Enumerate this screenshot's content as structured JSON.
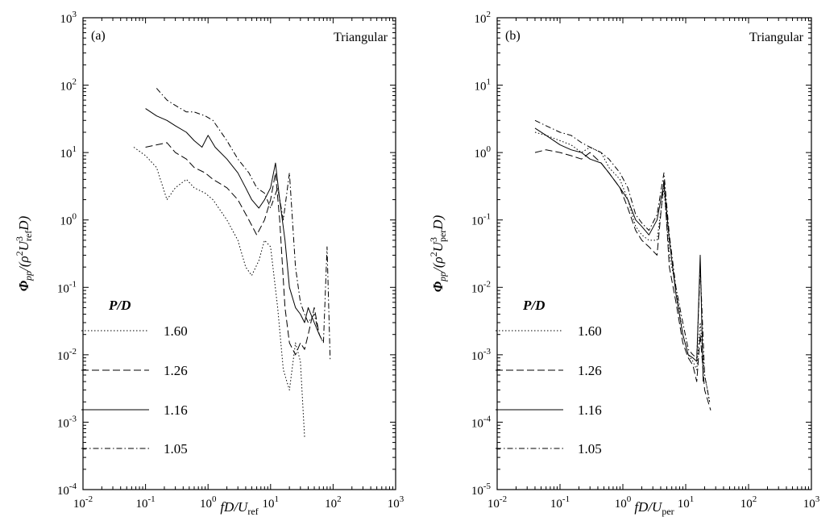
{
  "chart_data": [
    {
      "type": "line",
      "panel_label": "(a)",
      "title": "Triangular",
      "xlabel": "fD/U",
      "xlabel_sub": "ref",
      "ylabel": "Φ",
      "ylabel_sub": "pp",
      "ylabel_rest": "/(ρ",
      "ylabel_sup": "2",
      "ylabel_U": "U",
      "ylabel_U_sup": "3",
      "ylabel_U_sub": "ref",
      "ylabel_end": "D)",
      "x_scale": "log",
      "y_scale": "log",
      "xlim": [
        0.01,
        1000
      ],
      "ylim": [
        0.0001,
        1000
      ],
      "x_ticks": [
        {
          "base": "10",
          "exp": "-2"
        },
        {
          "base": "10",
          "exp": "-1"
        },
        {
          "base": "10",
          "exp": "0"
        },
        {
          "base": "10",
          "exp": "1"
        },
        {
          "base": "10",
          "exp": "2"
        },
        {
          "base": "10",
          "exp": "3"
        }
      ],
      "y_ticks": [
        {
          "base": "10",
          "exp": "-4"
        },
        {
          "base": "10",
          "exp": "-3"
        },
        {
          "base": "10",
          "exp": "-2"
        },
        {
          "base": "10",
          "exp": "-1"
        },
        {
          "base": "10",
          "exp": "0"
        },
        {
          "base": "10",
          "exp": "1"
        },
        {
          "base": "10",
          "exp": "2"
        },
        {
          "base": "10",
          "exp": "3"
        }
      ],
      "legend_title": "P/D",
      "legend_position": "lower-left",
      "series": [
        {
          "name": "1.60",
          "dash": "dotted",
          "x": [
            0.065,
            0.1,
            0.15,
            0.22,
            0.3,
            0.45,
            0.6,
            0.9,
            1.2,
            2.0,
            3.0,
            4.0,
            5.0,
            6.5,
            8.0,
            10,
            13,
            16,
            20,
            25,
            30,
            35
          ],
          "y": [
            12,
            9,
            6,
            2.0,
            3.0,
            4.0,
            3.0,
            2.5,
            2.0,
            1.0,
            0.5,
            0.2,
            0.15,
            0.25,
            0.5,
            0.4,
            0.05,
            0.006,
            0.003,
            0.015,
            0.008,
            0.0006
          ]
        },
        {
          "name": "1.26",
          "dash": "dashed",
          "x": [
            0.1,
            0.15,
            0.22,
            0.3,
            0.45,
            0.6,
            0.9,
            1.2,
            2.0,
            3.0,
            4.5,
            6.0,
            8.0,
            10,
            12,
            14,
            17,
            20,
            25,
            30,
            35,
            40,
            50,
            60,
            70
          ],
          "y": [
            12,
            13,
            14,
            10,
            8,
            6,
            5,
            4,
            3.0,
            2.0,
            1.0,
            0.6,
            1.0,
            2.0,
            5.0,
            1.0,
            0.05,
            0.015,
            0.01,
            0.015,
            0.012,
            0.02,
            0.05,
            0.02,
            0.015
          ]
        },
        {
          "name": "1.16",
          "dash": "solid",
          "x": [
            0.1,
            0.15,
            0.22,
            0.3,
            0.45,
            0.6,
            0.8,
            1.0,
            1.3,
            2.0,
            3.0,
            4.0,
            5.0,
            6.5,
            8.0,
            10,
            12,
            14,
            17,
            20,
            25,
            30,
            35,
            40,
            50,
            60
          ],
          "y": [
            45,
            35,
            30,
            25,
            20,
            15,
            12,
            18,
            12,
            8,
            5,
            3,
            2.0,
            1.5,
            2.0,
            3.0,
            7,
            2.0,
            0.5,
            0.1,
            0.05,
            0.04,
            0.03,
            0.05,
            0.03,
            0.02
          ]
        },
        {
          "name": "1.05",
          "dash": "dashdot",
          "x": [
            0.15,
            0.22,
            0.3,
            0.45,
            0.6,
            0.9,
            1.2,
            2.0,
            3.0,
            4.5,
            6.0,
            8.0,
            10,
            13,
            16,
            20,
            25,
            30,
            35,
            40,
            50,
            60,
            70,
            80,
            90
          ],
          "y": [
            90,
            60,
            50,
            40,
            40,
            35,
            30,
            15,
            8,
            5,
            3.0,
            2.5,
            1.5,
            3.0,
            1.0,
            5.0,
            0.2,
            0.06,
            0.04,
            0.03,
            0.04,
            0.02,
            0.015,
            0.4,
            0.008
          ]
        }
      ]
    },
    {
      "type": "line",
      "panel_label": "(b)",
      "title": "Triangular",
      "xlabel": "fD/U",
      "xlabel_sub": "per",
      "ylabel": "Φ",
      "ylabel_sub": "pp",
      "ylabel_rest": "/(ρ",
      "ylabel_sup": "2",
      "ylabel_U": "U",
      "ylabel_U_sup": "3",
      "ylabel_U_sub": "per",
      "ylabel_end": "D)",
      "x_scale": "log",
      "y_scale": "log",
      "xlim": [
        0.01,
        1000
      ],
      "ylim": [
        1e-05,
        100
      ],
      "x_ticks": [
        {
          "base": "10",
          "exp": "-2"
        },
        {
          "base": "10",
          "exp": "-1"
        },
        {
          "base": "10",
          "exp": "0"
        },
        {
          "base": "10",
          "exp": "1"
        },
        {
          "base": "10",
          "exp": "2"
        },
        {
          "base": "10",
          "exp": "3"
        }
      ],
      "y_ticks": [
        {
          "base": "10",
          "exp": "-5"
        },
        {
          "base": "10",
          "exp": "-4"
        },
        {
          "base": "10",
          "exp": "-3"
        },
        {
          "base": "10",
          "exp": "-2"
        },
        {
          "base": "10",
          "exp": "-1"
        },
        {
          "base": "10",
          "exp": "0"
        },
        {
          "base": "10",
          "exp": "1"
        },
        {
          "base": "10",
          "exp": "2"
        }
      ],
      "legend_title": "P/D",
      "legend_position": "lower-left",
      "series": [
        {
          "name": "1.60",
          "dash": "dotted",
          "x": [
            0.04,
            0.06,
            0.1,
            0.15,
            0.22,
            0.3,
            0.45,
            0.6,
            0.9,
            1.2,
            1.6,
            2.0,
            2.6,
            3.5,
            4.5,
            5.5,
            7.0,
            9.0,
            11,
            13,
            15,
            17,
            20,
            24
          ],
          "y": [
            2.0,
            1.8,
            1.5,
            1.3,
            1.0,
            1.2,
            1.0,
            0.6,
            0.4,
            0.2,
            0.08,
            0.06,
            0.05,
            0.05,
            0.3,
            0.03,
            0.01,
            0.002,
            0.001,
            0.0008,
            0.0006,
            0.003,
            0.0005,
            0.0002
          ]
        },
        {
          "name": "1.26",
          "dash": "dashed",
          "x": [
            0.04,
            0.06,
            0.1,
            0.15,
            0.22,
            0.3,
            0.45,
            0.6,
            0.9,
            1.2,
            1.6,
            2.0,
            2.6,
            3.5,
            4.5,
            5.5,
            7.0,
            9.0,
            11,
            13,
            15,
            17,
            20,
            25
          ],
          "y": [
            1.0,
            1.1,
            1.0,
            0.9,
            0.8,
            1.0,
            0.7,
            0.5,
            0.3,
            0.15,
            0.07,
            0.05,
            0.04,
            0.03,
            0.4,
            0.02,
            0.006,
            0.0015,
            0.0009,
            0.0007,
            0.0004,
            0.002,
            0.0003,
            0.00015
          ]
        },
        {
          "name": "1.16",
          "dash": "solid",
          "x": [
            0.04,
            0.06,
            0.1,
            0.15,
            0.22,
            0.3,
            0.45,
            0.6,
            0.9,
            1.2,
            1.6,
            2.0,
            2.6,
            3.5,
            4.5,
            5.5,
            7.0,
            9.0,
            11,
            13,
            15,
            17,
            19
          ],
          "y": [
            2.3,
            1.8,
            1.3,
            1.1,
            1.0,
            0.8,
            0.7,
            0.5,
            0.3,
            0.2,
            0.1,
            0.08,
            0.06,
            0.1,
            0.35,
            0.05,
            0.008,
            0.002,
            0.001,
            0.0009,
            0.0008,
            0.03,
            0.0004
          ]
        },
        {
          "name": "1.05",
          "dash": "dashdot",
          "x": [
            0.04,
            0.06,
            0.1,
            0.15,
            0.22,
            0.3,
            0.45,
            0.6,
            0.9,
            1.2,
            1.6,
            2.0,
            2.6,
            3.5,
            4.5,
            5.5,
            7.0,
            9.0,
            11,
            13,
            15,
            17,
            20,
            24
          ],
          "y": [
            3.0,
            2.5,
            2.0,
            1.8,
            1.4,
            1.2,
            1.0,
            0.8,
            0.5,
            0.3,
            0.12,
            0.09,
            0.07,
            0.12,
            0.5,
            0.06,
            0.01,
            0.003,
            0.0012,
            0.001,
            0.0009,
            0.02,
            0.0005,
            0.0002
          ]
        }
      ]
    }
  ]
}
